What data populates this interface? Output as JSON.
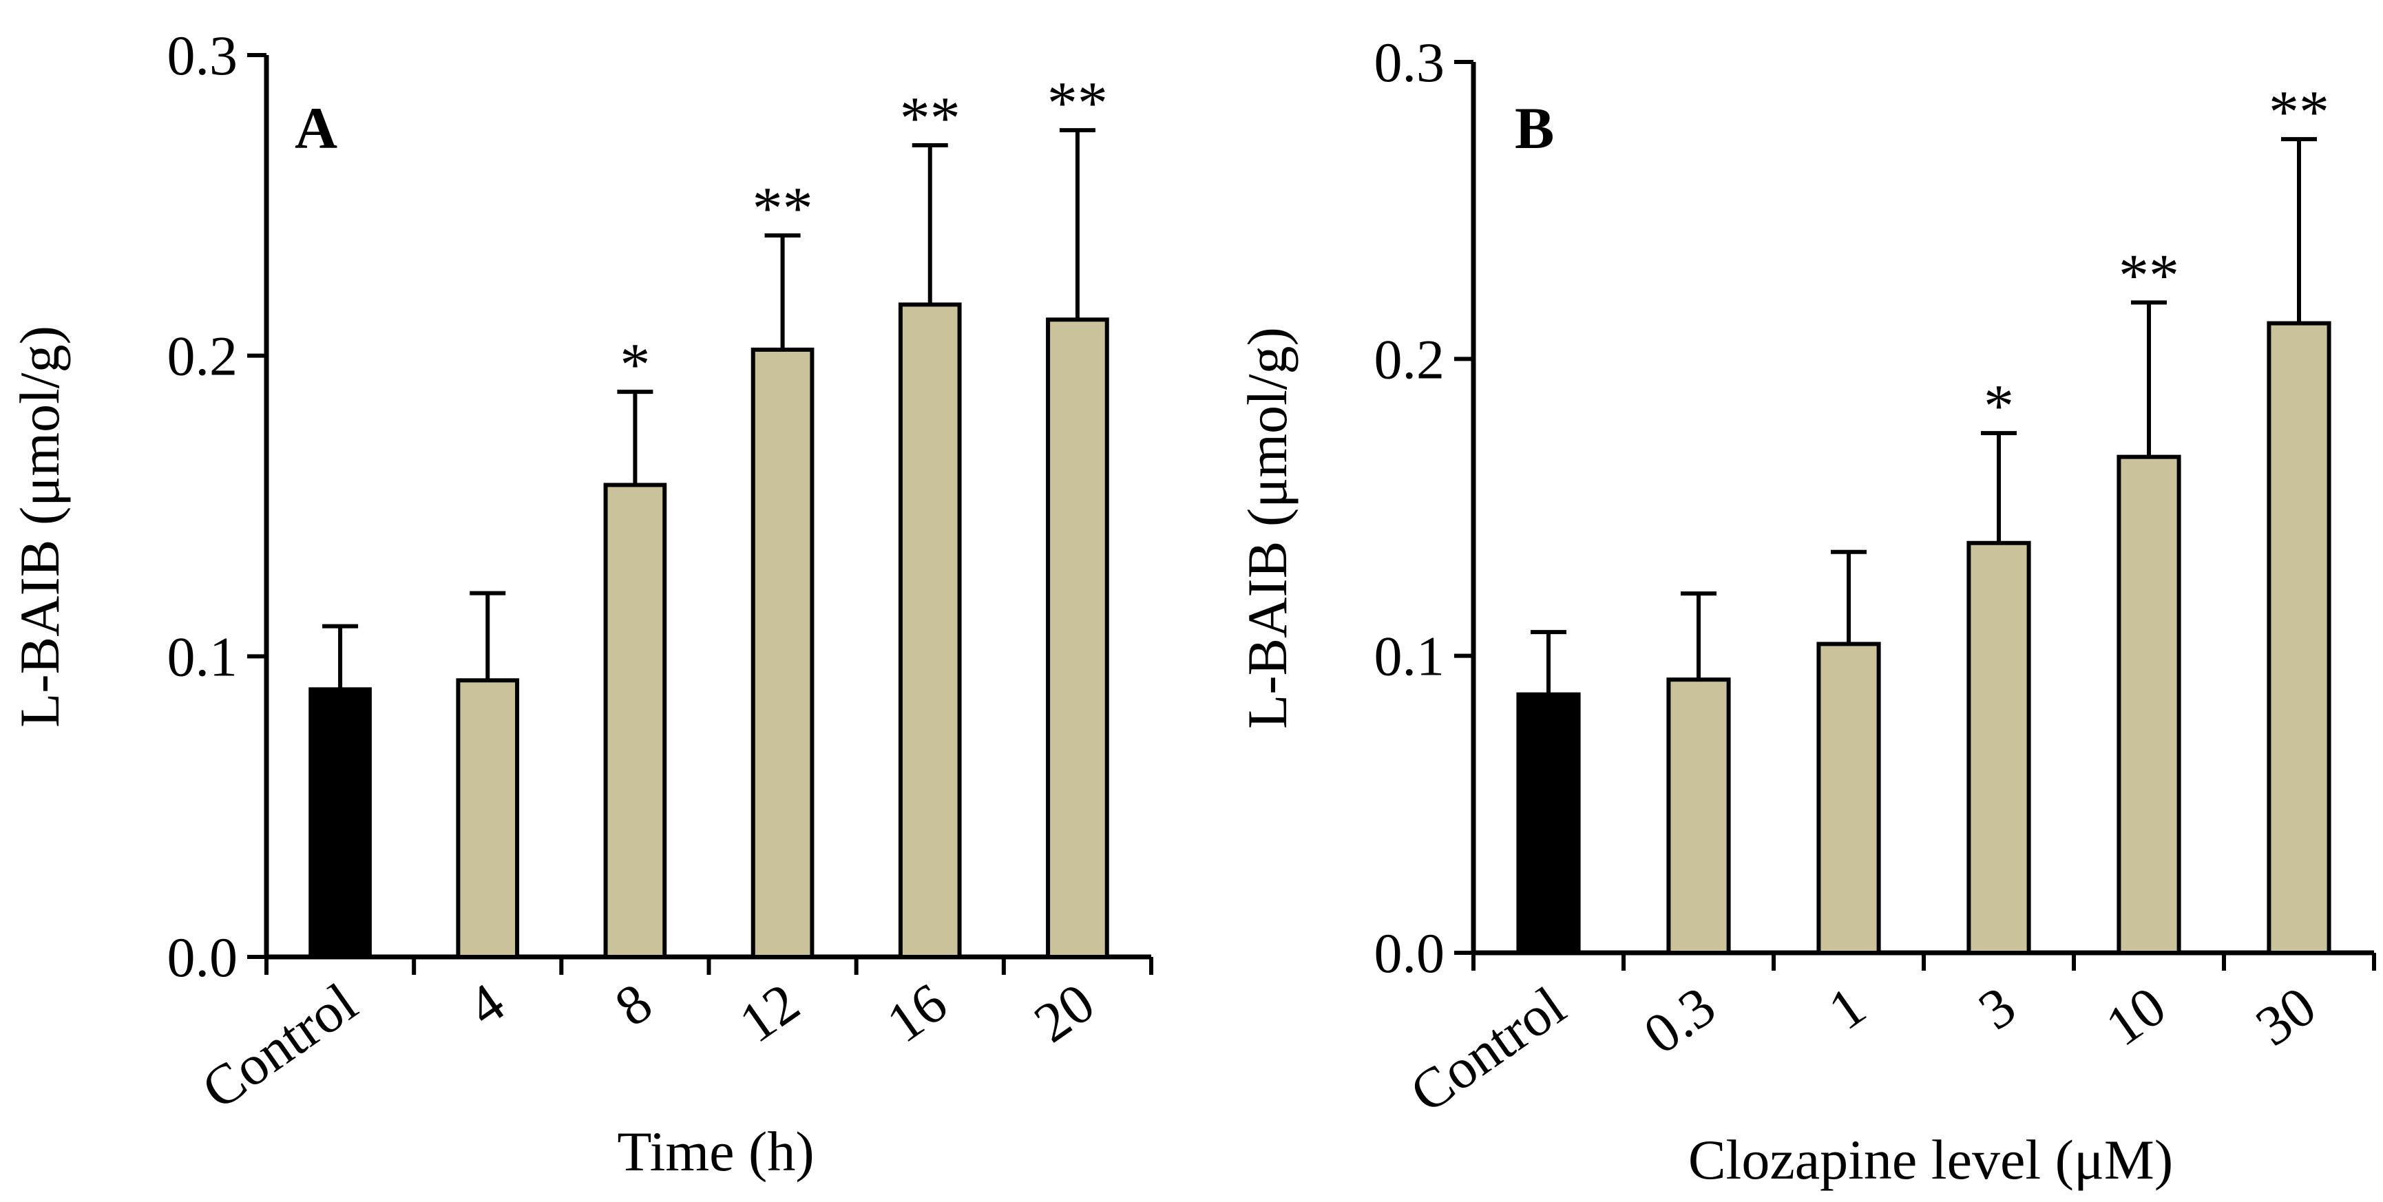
{
  "colors": {
    "control_bar": "#000000",
    "treatment_bar": "#c9c29b",
    "axis": "#000000"
  },
  "chart_data": [
    {
      "type": "bar",
      "panel_label": "A",
      "categories": [
        "Control",
        "4",
        "8",
        "12",
        "16",
        "20"
      ],
      "values": [
        0.089,
        0.092,
        0.157,
        0.202,
        0.217,
        0.212
      ],
      "errors": [
        0.021,
        0.029,
        0.031,
        0.038,
        0.053,
        0.063
      ],
      "significance": [
        "",
        "",
        "*",
        "**",
        "**",
        "**"
      ],
      "xlabel": "Time (h)",
      "ylabel": "L-BAIB (μmol/g)",
      "ylim": [
        0,
        0.3
      ],
      "yticks": [
        0.0,
        0.1,
        0.2,
        0.3
      ],
      "ytick_labels": [
        "0.0",
        "0.1",
        "0.2",
        "0.3"
      ],
      "legend": "none",
      "grid": false
    },
    {
      "type": "bar",
      "panel_label": "B",
      "categories": [
        "Control",
        "0.3",
        "1",
        "3",
        "10",
        "30"
      ],
      "values": [
        0.087,
        0.092,
        0.104,
        0.138,
        0.167,
        0.212
      ],
      "errors": [
        0.021,
        0.029,
        0.031,
        0.037,
        0.052,
        0.062
      ],
      "significance": [
        "",
        "",
        "",
        "*",
        "**",
        "**"
      ],
      "xlabel": "Clozapine level (μM)",
      "ylabel": "L-BAIB (μmol/g)",
      "ylim": [
        0,
        0.3
      ],
      "yticks": [
        0.0,
        0.1,
        0.2,
        0.3
      ],
      "ytick_labels": [
        "0.0",
        "0.1",
        "0.2",
        "0.3"
      ],
      "legend": "none",
      "grid": false
    }
  ]
}
